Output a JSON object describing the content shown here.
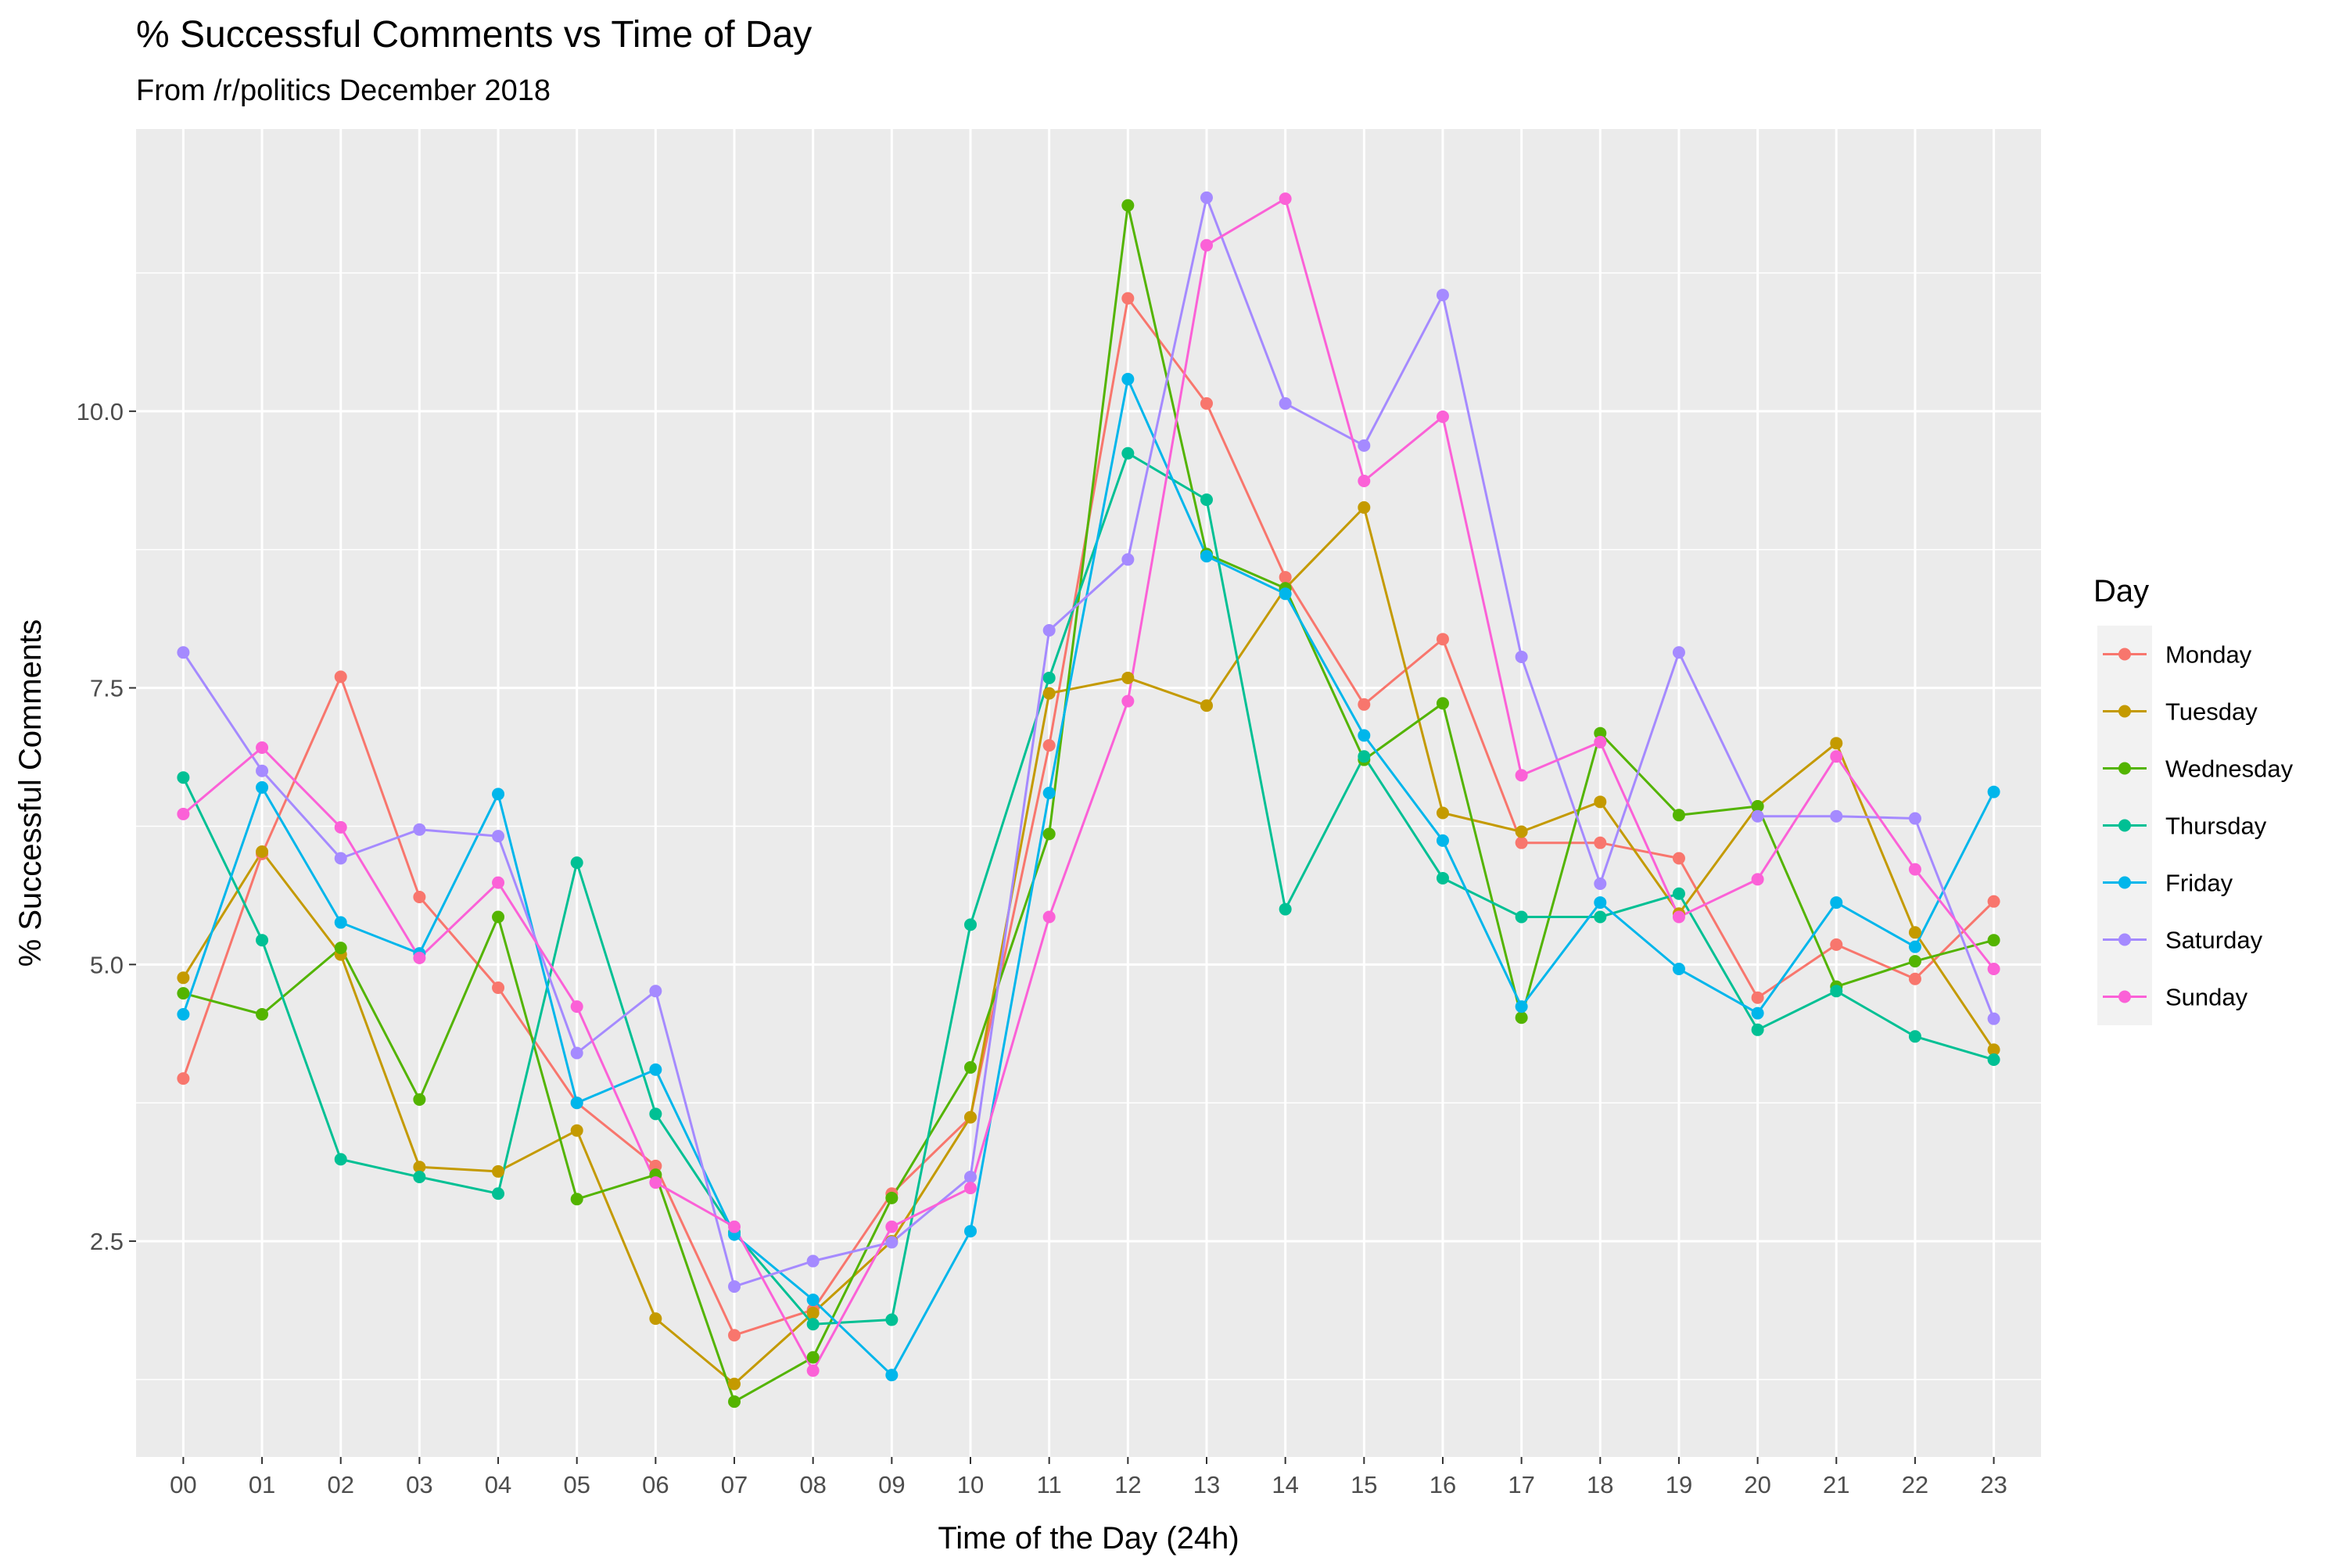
{
  "chart_data": {
    "type": "line",
    "title": "% Successful Comments vs Time of Day",
    "subtitle": "From /r/politics December 2018",
    "xlabel": "Time of the Day (24h)",
    "ylabel": "% Successful Comments",
    "categories": [
      "00",
      "01",
      "02",
      "03",
      "04",
      "05",
      "06",
      "07",
      "08",
      "09",
      "10",
      "11",
      "12",
      "13",
      "14",
      "15",
      "16",
      "17",
      "18",
      "19",
      "20",
      "21",
      "22",
      "23"
    ],
    "yticks": [
      "2.5",
      "5.0",
      "7.5",
      "10.0"
    ],
    "ylim": [
      0.55,
      12.55
    ],
    "grid": true,
    "legend_title": "Day",
    "legend_position": "right",
    "panel_background": "#EBEBEB",
    "grid_color": "#FFFFFF",
    "series": [
      {
        "name": "Monday",
        "color": "#F8766D",
        "values": [
          3.97,
          6.0,
          7.6,
          5.61,
          4.79,
          3.75,
          3.18,
          1.65,
          1.88,
          2.93,
          3.62,
          6.98,
          11.02,
          10.07,
          8.5,
          7.35,
          7.94,
          6.1,
          6.1,
          5.96,
          4.7,
          5.18,
          4.87,
          5.57
        ]
      },
      {
        "name": "Tuesday",
        "color": "#C49A00",
        "values": [
          4.88,
          6.02,
          5.09,
          3.17,
          3.13,
          3.5,
          1.8,
          1.21,
          1.85,
          2.5,
          3.62,
          7.45,
          7.59,
          7.34,
          8.4,
          9.13,
          6.37,
          6.2,
          6.47,
          5.46,
          6.43,
          7.0,
          5.29,
          4.23
        ]
      },
      {
        "name": "Wednesday",
        "color": "#53B400",
        "values": [
          4.74,
          4.55,
          5.15,
          3.78,
          5.43,
          2.88,
          3.1,
          1.05,
          1.45,
          2.89,
          4.07,
          6.18,
          11.86,
          8.71,
          8.4,
          6.85,
          7.36,
          4.52,
          7.09,
          6.35,
          6.43,
          4.8,
          5.03,
          5.22
        ]
      },
      {
        "name": "Thursday",
        "color": "#00C094",
        "values": [
          6.69,
          5.22,
          3.24,
          3.08,
          2.93,
          5.92,
          3.65,
          2.58,
          1.75,
          1.79,
          5.36,
          7.59,
          9.62,
          9.2,
          5.5,
          6.88,
          5.78,
          5.43,
          5.43,
          5.64,
          4.41,
          4.76,
          4.35,
          4.14
        ]
      },
      {
        "name": "Friday",
        "color": "#00B6EB",
        "values": [
          4.55,
          6.6,
          5.38,
          5.1,
          6.54,
          3.75,
          4.05,
          2.56,
          1.97,
          1.29,
          2.59,
          6.55,
          10.29,
          8.69,
          8.35,
          7.07,
          6.12,
          4.62,
          5.56,
          4.96,
          4.56,
          5.56,
          5.16,
          6.56
        ]
      },
      {
        "name": "Saturday",
        "color": "#A58AFF",
        "values": [
          7.82,
          6.75,
          5.96,
          6.22,
          6.16,
          4.2,
          4.76,
          2.09,
          2.32,
          2.49,
          3.08,
          8.02,
          8.66,
          11.93,
          10.07,
          9.69,
          11.05,
          7.78,
          5.73,
          7.82,
          6.34,
          6.34,
          6.32,
          4.51
        ]
      },
      {
        "name": "Sunday",
        "color": "#FB61D7",
        "values": [
          6.36,
          6.96,
          6.24,
          5.06,
          5.74,
          4.62,
          3.03,
          2.63,
          1.33,
          2.63,
          2.98,
          5.43,
          7.38,
          11.5,
          11.92,
          9.37,
          9.95,
          6.71,
          7.01,
          5.43,
          5.77,
          6.88,
          5.86,
          4.96
        ]
      }
    ]
  }
}
